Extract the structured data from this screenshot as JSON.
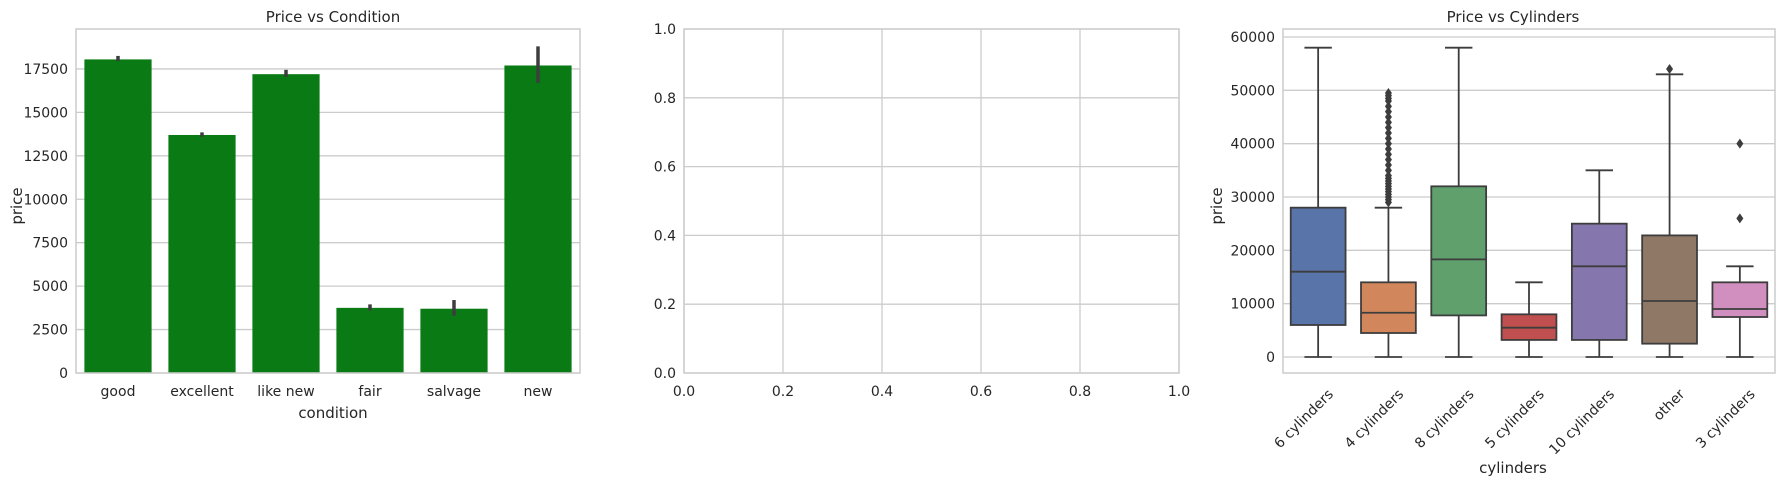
{
  "chart_data": [
    {
      "type": "bar",
      "title": "Price vs Condition",
      "xlabel": "condition",
      "ylabel": "price",
      "categories": [
        "good",
        "excellent",
        "like new",
        "fair",
        "salvage",
        "new"
      ],
      "values": [
        18050,
        13700,
        17200,
        3750,
        3700,
        17700
      ],
      "ci": [
        [
          17950,
          18250
        ],
        [
          13600,
          13850
        ],
        [
          17050,
          17450
        ],
        [
          3600,
          3950
        ],
        [
          3300,
          4200
        ],
        [
          16700,
          18800
        ]
      ],
      "ylim": [
        0,
        19800
      ],
      "yticks": [
        0,
        2500,
        5000,
        7500,
        10000,
        12500,
        15000,
        17500
      ],
      "yticklabels": [
        "0",
        "2500",
        "5000",
        "7500",
        "10000",
        "12500",
        "15000",
        "17500"
      ],
      "color": "#0a7a14",
      "grid": true
    },
    {
      "type": "empty",
      "title": "",
      "xlim": [
        0,
        1
      ],
      "ylim": [
        0,
        1
      ],
      "xticks": [
        0,
        0.2,
        0.4,
        0.6,
        0.8,
        1.0
      ],
      "xticklabels": [
        "0.0",
        "0.2",
        "0.4",
        "0.6",
        "0.8",
        "1.0"
      ],
      "yticks": [
        0,
        0.2,
        0.4,
        0.6,
        0.8,
        1.0
      ],
      "yticklabels": [
        "0.0",
        "0.2",
        "0.4",
        "0.6",
        "0.8",
        "1.0"
      ],
      "grid": true
    },
    {
      "type": "box",
      "title": "Price vs Cylinders",
      "xlabel": "cylinders",
      "ylabel": "price",
      "categories": [
        "6 cylinders",
        "4 cylinders",
        "8 cylinders",
        "5 cylinders",
        "10 cylinders",
        "other",
        "3 cylinders"
      ],
      "boxes": [
        {
          "min": 0,
          "q1": 6000,
          "median": 16000,
          "q3": 28000,
          "max": 58000,
          "outliers": [],
          "color": "#5874a8"
        },
        {
          "min": 0,
          "q1": 4500,
          "median": 8300,
          "q3": 14000,
          "max": 28000,
          "outliers": [
            29000,
            29500,
            30000,
            30500,
            31000,
            31500,
            32000,
            32500,
            33000,
            33500,
            34000,
            35000,
            36000,
            37000,
            38000,
            39000,
            40000,
            41000,
            42000,
            43000,
            44000,
            45000,
            46000,
            47000,
            48000,
            48500,
            49000,
            49500
          ],
          "color": "#d1875b"
        },
        {
          "min": 0,
          "q1": 7800,
          "median": 18300,
          "q3": 32000,
          "max": 58000,
          "outliers": [],
          "color": "#5fa06d"
        },
        {
          "min": 0,
          "q1": 3200,
          "median": 5500,
          "q3": 8000,
          "max": 14000,
          "outliers": [],
          "color": "#c0504f"
        },
        {
          "min": 0,
          "q1": 3200,
          "median": 17000,
          "q3": 25000,
          "max": 35000,
          "outliers": [],
          "color": "#8577ae"
        },
        {
          "min": 0,
          "q1": 2500,
          "median": 10500,
          "q3": 22800,
          "max": 53000,
          "outliers": [
            54000
          ],
          "color": "#8f7866"
        },
        {
          "min": 0,
          "q1": 7500,
          "median": 9000,
          "q3": 14000,
          "max": 17000,
          "outliers": [
            26000,
            40000
          ],
          "color": "#d08fbf"
        }
      ],
      "ylim": [
        -3000,
        61500
      ],
      "yticks": [
        0,
        10000,
        20000,
        30000,
        40000,
        50000,
        60000
      ],
      "yticklabels": [
        "0",
        "10000",
        "20000",
        "30000",
        "40000",
        "50000",
        "60000"
      ],
      "grid": true
    }
  ]
}
